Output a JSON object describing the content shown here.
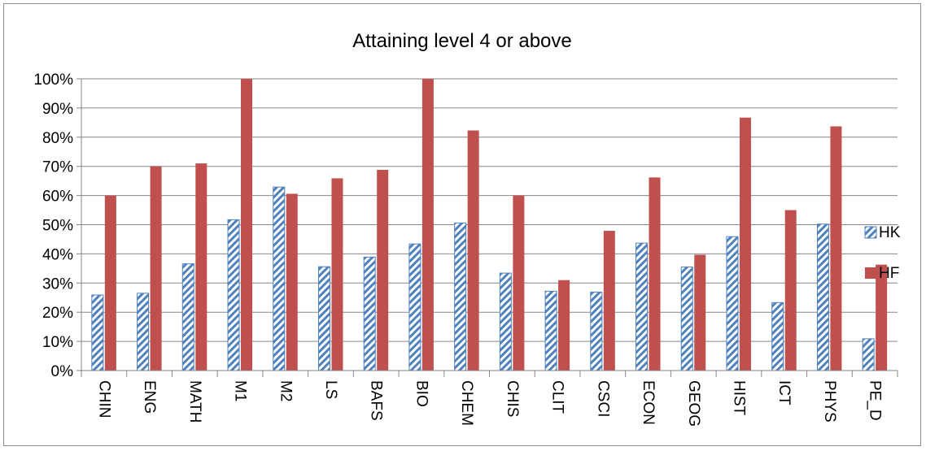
{
  "chart_data": {
    "type": "bar",
    "title": "Attaining level 4 or above",
    "xlabel": "",
    "ylabel": "",
    "ylim": [
      0,
      100
    ],
    "yticks": [
      "0%",
      "10%",
      "20%",
      "30%",
      "40%",
      "50%",
      "60%",
      "70%",
      "80%",
      "90%",
      "100%"
    ],
    "grid": true,
    "legend_position": "right",
    "categories": [
      "CHIN",
      "ENG",
      "MATH",
      "M1",
      "M2",
      "LS",
      "BAFS",
      "BIO",
      "CHEM",
      "CHIS",
      "CLIT",
      "CSCI",
      "ECON",
      "GEOG",
      "HIST",
      "ICT",
      "PHYS",
      "PE_D"
    ],
    "series": [
      {
        "name": "HK",
        "color": "#4f81bd",
        "pattern": "diagonal-stripes",
        "values": [
          25.9,
          26.5,
          36.6,
          51.7,
          62.9,
          35.6,
          38.9,
          43.4,
          50.6,
          33.4,
          27.2,
          26.9,
          43.7,
          35.5,
          45.9,
          23.3,
          50.2,
          10.9
        ]
      },
      {
        "name": "HF",
        "color": "#c0504d",
        "pattern": "solid",
        "values": [
          60.0,
          70.0,
          71.0,
          100.0,
          60.6,
          65.9,
          68.8,
          100.0,
          82.3,
          60.0,
          31.0,
          47.9,
          66.2,
          39.7,
          86.7,
          55.0,
          83.7,
          36.3
        ]
      }
    ]
  }
}
